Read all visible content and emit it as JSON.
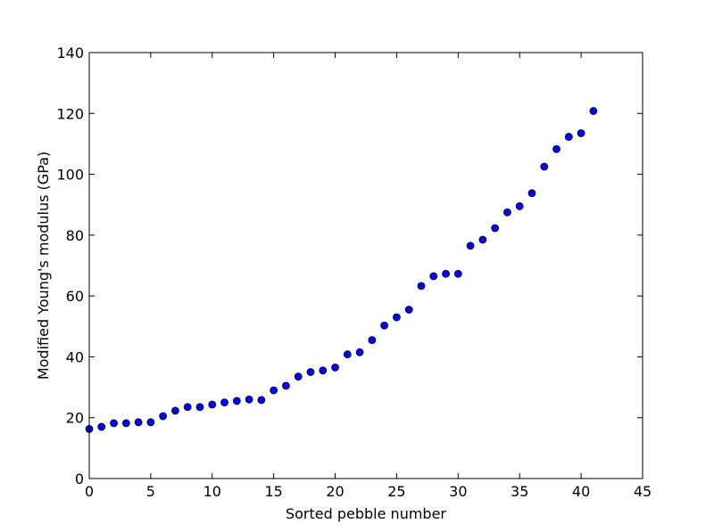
{
  "chart_data": {
    "type": "scatter",
    "title": "",
    "xlabel": "Sorted pebble number",
    "ylabel": "Modified Young's modulus (GPa)",
    "xlim": [
      0,
      45
    ],
    "ylim": [
      0,
      140
    ],
    "xticks": [
      0,
      5,
      10,
      15,
      20,
      25,
      30,
      35,
      40,
      45
    ],
    "yticks": [
      0,
      20,
      40,
      60,
      80,
      100,
      120,
      140
    ],
    "grid": false,
    "legend": "none",
    "marker_color": "#0000ff",
    "series": [
      {
        "x": [
          0,
          1,
          2,
          3,
          4,
          5,
          6,
          7,
          8,
          9,
          10,
          11,
          12,
          13,
          14,
          15,
          16,
          17,
          18,
          19,
          20,
          21,
          22,
          23,
          24,
          25,
          26,
          27,
          28,
          29,
          30,
          31,
          32,
          33,
          34,
          35,
          36,
          37,
          38,
          39,
          40,
          41
        ],
        "y": [
          16.3,
          17.0,
          18.2,
          18.2,
          18.5,
          18.5,
          20.5,
          22.3,
          23.5,
          23.5,
          24.3,
          25.0,
          25.5,
          26.0,
          25.8,
          29.0,
          30.5,
          33.5,
          35.0,
          35.5,
          36.5,
          40.8,
          41.5,
          45.5,
          50.3,
          53.0,
          55.5,
          63.3,
          66.5,
          67.3,
          67.3,
          76.5,
          78.5,
          82.3,
          87.5,
          89.5,
          93.8,
          102.5,
          108.3,
          112.3,
          113.5,
          120.8
        ]
      }
    ]
  }
}
